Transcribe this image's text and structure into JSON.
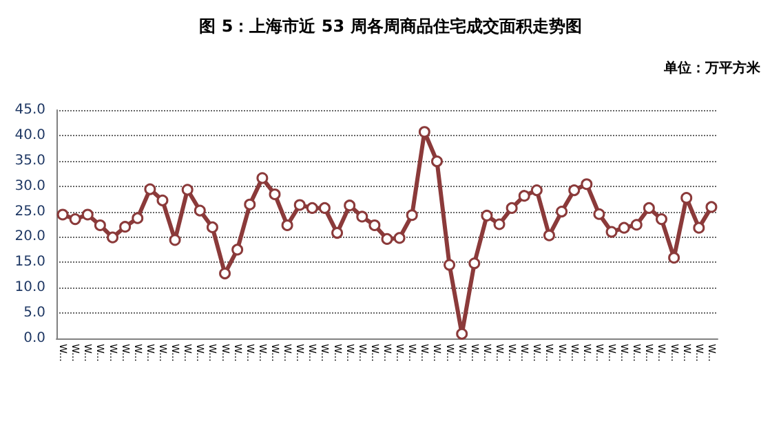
{
  "chart_data": {
    "type": "line",
    "title": "图 5：上海市近 53 周各周商品住宅成交面积走势图",
    "subtitle": "单位：万平方米",
    "categories": [
      "W...",
      "W...",
      "W...",
      "W...",
      "W...",
      "W...",
      "W...",
      "W...",
      "W...",
      "W...",
      "W...",
      "W...",
      "W...",
      "W...",
      "W...",
      "W...",
      "W...",
      "W...",
      "W...",
      "W...",
      "W...",
      "W...",
      "W...",
      "W...",
      "W...",
      "W...",
      "W...",
      "W...",
      "W...",
      "W...",
      "W...",
      "W...",
      "W...",
      "W...",
      "W...",
      "W...",
      "W...",
      "W...",
      "W...",
      "W...",
      "W...",
      "W...",
      "W...",
      "W...",
      "W...",
      "W...",
      "W...",
      "W...",
      "W...",
      "W...",
      "W...",
      "W...",
      "W..."
    ],
    "series": [
      {
        "color": "#8b3a3a",
        "values": [
          24.4,
          23.5,
          24.4,
          22.3,
          19.9,
          22.0,
          23.7,
          29.4,
          27.2,
          19.4,
          29.3,
          25.2,
          21.9,
          12.8,
          17.5,
          26.4,
          31.6,
          28.4,
          22.3,
          26.3,
          25.7,
          25.7,
          20.8,
          26.2,
          24.0,
          22.3,
          19.6,
          19.8,
          24.3,
          40.7,
          34.9,
          14.5,
          0.9,
          14.8,
          24.2,
          22.5,
          25.7,
          28.1,
          29.2,
          20.3,
          25.0,
          29.2,
          30.4,
          24.5,
          21.0,
          21.8,
          22.4,
          25.7,
          23.5,
          15.9,
          27.7,
          21.8,
          25.9
        ]
      }
    ],
    "ylim": [
      0,
      45
    ],
    "yticks": [
      {
        "value": 0,
        "label": "0.0"
      },
      {
        "value": 5,
        "label": "5.0"
      },
      {
        "value": 10,
        "label": "10.0"
      },
      {
        "value": 15,
        "label": "15.0"
      },
      {
        "value": 20,
        "label": "20.0"
      },
      {
        "value": 25,
        "label": "25.0"
      },
      {
        "value": 30,
        "label": "30.0"
      },
      {
        "value": 35,
        "label": "35.0"
      },
      {
        "value": 40,
        "label": "40.0"
      },
      {
        "value": 45,
        "label": "45.0"
      }
    ],
    "grid": "y",
    "marker": "circle",
    "line_style": "solid"
  }
}
